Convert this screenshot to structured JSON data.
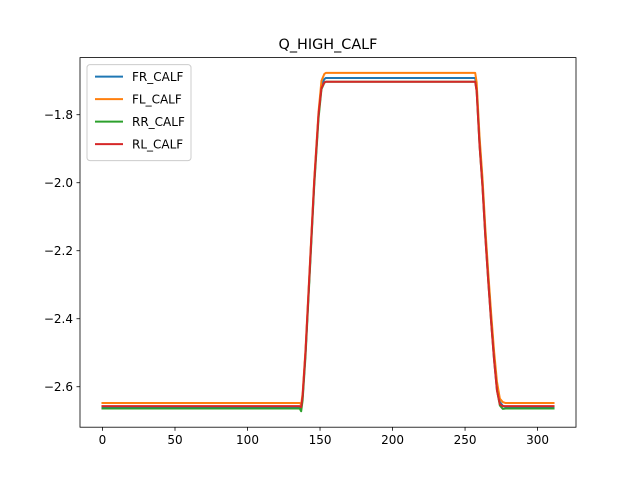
{
  "chart_data": {
    "type": "line",
    "title": "Q_HIGH_CALF",
    "xlabel": "",
    "ylabel": "",
    "xlim": [
      -15.5,
      326.5
    ],
    "ylim": [
      -2.719,
      -1.632
    ],
    "xticks": [
      0,
      50,
      100,
      150,
      200,
      250,
      300
    ],
    "xtick_labels": [
      "0",
      "50",
      "100",
      "150",
      "200",
      "250",
      "300"
    ],
    "yticks": [
      -2.6,
      -2.4,
      -2.2,
      -2.0,
      -1.8
    ],
    "ytick_labels": [
      "−2.6",
      "−2.4",
      "−2.2",
      "−2.0",
      "−1.8"
    ],
    "grid": false,
    "legend": "top-left",
    "series": [
      {
        "name": "FR_CALF",
        "color": "#1f77b4",
        "x": [
          0,
          136,
          137,
          138,
          140,
          143,
          146,
          149,
          151,
          153,
          154,
          257,
          258,
          260,
          262,
          264,
          266,
          268,
          270,
          272,
          274,
          276,
          278,
          311
        ],
        "y": [
          -2.659,
          -2.659,
          -2.662,
          -2.63,
          -2.5,
          -2.25,
          -2.0,
          -1.8,
          -1.715,
          -1.695,
          -1.692,
          -1.692,
          -1.72,
          -1.88,
          -2.0,
          -2.15,
          -2.28,
          -2.4,
          -2.51,
          -2.6,
          -2.645,
          -2.656,
          -2.659,
          -2.659
        ]
      },
      {
        "name": "FL_CALF",
        "color": "#ff7f0e",
        "x": [
          0,
          136,
          137,
          138,
          140,
          143,
          146,
          149,
          151,
          153,
          154,
          257,
          258,
          260,
          262,
          264,
          266,
          268,
          270,
          272,
          274,
          276,
          278,
          311
        ],
        "y": [
          -2.648,
          -2.648,
          -2.652,
          -2.62,
          -2.49,
          -2.24,
          -1.99,
          -1.79,
          -1.7,
          -1.68,
          -1.677,
          -1.677,
          -1.705,
          -1.865,
          -1.985,
          -2.135,
          -2.265,
          -2.385,
          -2.495,
          -2.585,
          -2.635,
          -2.645,
          -2.648,
          -2.648
        ]
      },
      {
        "name": "RR_CALF",
        "color": "#2ca02c",
        "x": [
          0,
          136,
          137,
          138,
          140,
          143,
          146,
          149,
          151,
          153,
          154,
          257,
          258,
          260,
          262,
          264,
          266,
          268,
          270,
          272,
          274,
          276,
          278,
          311
        ],
        "y": [
          -2.664,
          -2.664,
          -2.672,
          -2.64,
          -2.51,
          -2.26,
          -2.01,
          -1.81,
          -1.725,
          -1.706,
          -1.703,
          -1.703,
          -1.73,
          -1.89,
          -2.01,
          -2.16,
          -2.29,
          -2.41,
          -2.52,
          -2.61,
          -2.655,
          -2.665,
          -2.664,
          -2.664
        ]
      },
      {
        "name": "RL_CALF",
        "color": "#d62728",
        "x": [
          0,
          136,
          137,
          138,
          140,
          143,
          146,
          149,
          151,
          153,
          154,
          257,
          258,
          260,
          262,
          264,
          266,
          268,
          270,
          272,
          274,
          276,
          278,
          311
        ],
        "y": [
          -2.657,
          -2.657,
          -2.66,
          -2.628,
          -2.498,
          -2.248,
          -1.998,
          -1.798,
          -1.722,
          -1.705,
          -1.703,
          -1.703,
          -1.731,
          -1.891,
          -2.011,
          -2.161,
          -2.291,
          -2.411,
          -2.521,
          -2.611,
          -2.652,
          -2.657,
          -2.657,
          -2.657
        ]
      }
    ]
  }
}
